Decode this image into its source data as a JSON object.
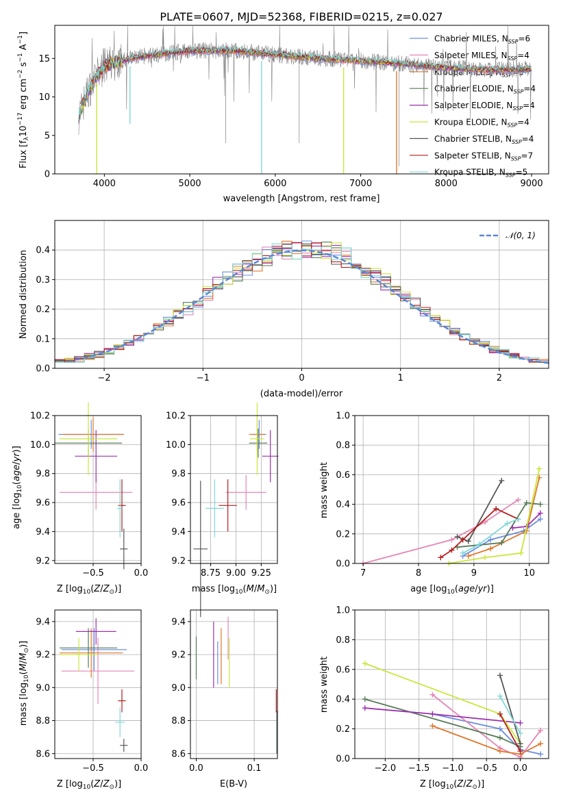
{
  "chart_data": [
    {
      "id": "spectrum",
      "type": "line",
      "title": "PLATE=0607, MJD=52368, FIBERID=0215, z=0.027",
      "xlabel": "wavelength [Angstrom, rest frame]",
      "ylabel": "Flux [f_λ10^-17 erg cm^-2 s^-1 A^-1]",
      "xlim": [
        3420,
        9200
      ],
      "ylim": [
        0,
        19.3
      ],
      "xticks": [
        4000,
        5000,
        6000,
        7000,
        8000,
        9000
      ],
      "yticks": [
        0,
        5,
        10,
        15
      ],
      "grid": false,
      "legend_position": "top-right",
      "shape_anchors": {
        "x": [
          3700,
          3800,
          3900,
          4000,
          4300,
          4600,
          5000,
          5500,
          6000,
          6500,
          7000,
          7500,
          8000,
          8500,
          9000
        ],
        "y": [
          7.5,
          10.5,
          12.5,
          14.0,
          15.0,
          15.5,
          16.0,
          16.0,
          15.5,
          15.0,
          14.7,
          14.3,
          13.8,
          13.5,
          13.6
        ]
      },
      "series": [
        {
          "name": "Chabrier MILES, N_SSP=6",
          "label_main": "Chabrier MILES, N",
          "label_sub": "SSP",
          "label_end": "=6",
          "color": "#6a8ee0"
        },
        {
          "name": "Salpeter MILES, N_SSP=4",
          "label_main": "Salpeter MILES, N",
          "label_sub": "SSP",
          "label_end": "=4",
          "color": "#e585b5"
        },
        {
          "name": "Kroupa MILES, N_SSP=5",
          "label_main": "Kroupa MILES, N",
          "label_sub": "SSP",
          "label_end": "=5",
          "color": "#e0772a"
        },
        {
          "name": "Chabrier ELODIE, N_SSP=4",
          "label_main": "Chabrier ELODIE, N",
          "label_sub": "SSP",
          "label_end": "=4",
          "color": "#557a55"
        },
        {
          "name": "Salpeter ELODIE, N_SSP=4",
          "label_main": "Salpeter ELODIE, N",
          "label_sub": "SSP",
          "label_end": "=4",
          "color": "#9b2fae"
        },
        {
          "name": "Kroupa ELODIE, N_SSP=4",
          "label_main": "Kroupa ELODIE, N",
          "label_sub": "SSP",
          "label_end": "=4",
          "color": "#c9e63a"
        },
        {
          "name": "Chabrier STELIB, N_SSP=4",
          "label_main": "Chabrier STELIB, N",
          "label_sub": "SSP",
          "label_end": "=4",
          "color": "#555555"
        },
        {
          "name": "Salpeter STELIB, N_SSP=7",
          "label_main": "Salpeter STELIB, N",
          "label_sub": "SSP",
          "label_end": "=7",
          "color": "#b51c1c"
        },
        {
          "name": "Kroupa STELIB, N_SSP=5",
          "label_main": "Kroupa STELIB, N",
          "label_sub": "SSP",
          "label_end": "=5",
          "color": "#7fd8d8"
        }
      ],
      "observed_color": "#808080"
    },
    {
      "id": "residuals",
      "type": "histogram",
      "xlabel": "(data-model)/error",
      "ylabel": "Normed distribution",
      "xlim": [
        -2.5,
        2.5
      ],
      "ylim": [
        0,
        0.5
      ],
      "xticks": [
        -2,
        -1,
        0,
        1,
        2
      ],
      "yticks": [
        0.0,
        0.1,
        0.2,
        0.3,
        0.4
      ],
      "grid": true,
      "legend_position": "top-right",
      "gaussian_label": "𝒩(0, 1)",
      "gaussian_color": "#5a86d6",
      "bin_width": 0.1
    },
    {
      "id": "age-vs-Z",
      "type": "errorbar",
      "xlabel": "Z [log10(Z/Z⊙)]",
      "ylabel": "age  [log10(age/yr)]",
      "xlim": [
        -0.9,
        0.0
      ],
      "ylim": [
        9.18,
        10.2
      ],
      "xticks": [
        -0.5,
        0.0
      ],
      "xticklabels": [
        "−0.5",
        "0.0"
      ],
      "yticks": [
        9.2,
        9.4,
        9.6,
        9.8,
        10.0,
        10.2
      ],
      "grid": true,
      "points": [
        {
          "x": -0.52,
          "xerr": 0.34,
          "y": 10.07,
          "yerr": 0.1,
          "color": "#6a8ee0"
        },
        {
          "x": -0.47,
          "xerr": 0.38,
          "y": 9.67,
          "yerr": 0.12,
          "color": "#e585b5"
        },
        {
          "x": -0.5,
          "xerr": 0.32,
          "y": 10.07,
          "yerr": 0.12,
          "color": "#e0772a"
        },
        {
          "x": -0.55,
          "xerr": 0.35,
          "y": 10.01,
          "yerr": 0.1,
          "color": "#557a55"
        },
        {
          "x": -0.47,
          "xerr": 0.22,
          "y": 9.92,
          "yerr": 0.18,
          "color": "#9b2fae"
        },
        {
          "x": -0.55,
          "xerr": 0.3,
          "y": 10.04,
          "yerr": 0.25,
          "color": "#c9e63a"
        },
        {
          "x": -0.18,
          "xerr": 0.04,
          "y": 9.28,
          "yerr": 0.14,
          "color": "#555555"
        },
        {
          "x": -0.2,
          "xerr": 0.04,
          "y": 9.58,
          "yerr": 0.18,
          "color": "#b51c1c"
        },
        {
          "x": -0.22,
          "xerr": 0.03,
          "y": 9.56,
          "yerr": 0.2,
          "color": "#7fd8d8"
        }
      ]
    },
    {
      "id": "age-vs-mass",
      "type": "errorbar",
      "xlabel": "mass [log10(M/M⊙)]",
      "ylabel": "",
      "xlim": [
        8.55,
        9.41
      ],
      "ylim": [
        9.18,
        10.2
      ],
      "xticks": [
        8.75,
        9.0,
        9.25
      ],
      "yticks": [
        9.2,
        9.4,
        9.6,
        9.8,
        10.0,
        10.2
      ],
      "grid": true,
      "points": [
        {
          "x": 9.23,
          "xerr": 0.07,
          "y": 10.07,
          "yerr": 0.1,
          "color": "#6a8ee0"
        },
        {
          "x": 9.1,
          "xerr": 0.2,
          "y": 9.67,
          "yerr": 0.12,
          "color": "#e585b5"
        },
        {
          "x": 9.21,
          "xerr": 0.08,
          "y": 10.07,
          "yerr": 0.12,
          "color": "#e0772a"
        },
        {
          "x": 9.22,
          "xerr": 0.09,
          "y": 10.01,
          "yerr": 0.1,
          "color": "#557a55"
        },
        {
          "x": 9.34,
          "xerr": 0.08,
          "y": 9.92,
          "yerr": 0.18,
          "color": "#9b2fae"
        },
        {
          "x": 9.21,
          "xerr": 0.07,
          "y": 10.04,
          "yerr": 0.25,
          "color": "#c9e63a"
        },
        {
          "x": 8.65,
          "xerr": 0.07,
          "y": 9.28,
          "yerr": 0.47,
          "color": "#555555"
        },
        {
          "x": 8.92,
          "xerr": 0.09,
          "y": 9.58,
          "yerr": 0.18,
          "color": "#b51c1c"
        },
        {
          "x": 8.79,
          "xerr": 0.09,
          "y": 9.56,
          "yerr": 0.2,
          "color": "#7fd8d8"
        }
      ]
    },
    {
      "id": "weight-vs-age",
      "type": "line",
      "xlabel": "age  [log10(age/yr)]",
      "ylabel": "mass weight",
      "xlim": [
        6.85,
        10.35
      ],
      "ylim": [
        0,
        1.0
      ],
      "xticks": [
        7,
        8,
        9,
        10
      ],
      "yticks": [
        0.0,
        0.2,
        0.4,
        0.6,
        0.8,
        1.0
      ],
      "grid": true,
      "series": [
        {
          "color": "#6a8ee0",
          "x": [
            8.8,
            9.3,
            9.9,
            10.2
          ],
          "y": [
            0.05,
            0.16,
            0.22,
            0.3
          ]
        },
        {
          "color": "#e585b5",
          "x": [
            7.0,
            8.6,
            9.2,
            9.8
          ],
          "y": [
            0.0,
            0.16,
            0.28,
            0.43
          ]
        },
        {
          "color": "#e0772a",
          "x": [
            8.9,
            9.3,
            9.95,
            10.18
          ],
          "y": [
            0.05,
            0.1,
            0.22,
            0.58
          ]
        },
        {
          "color": "#557a55",
          "x": [
            8.7,
            9.5,
            9.95,
            10.2
          ],
          "y": [
            0.11,
            0.14,
            0.41,
            0.4
          ]
        },
        {
          "color": "#9b2fae",
          "x": [
            9.7,
            9.95,
            10.2
          ],
          "y": [
            0.24,
            0.25,
            0.34
          ]
        },
        {
          "color": "#c9e63a",
          "x": [
            8.55,
            9.2,
            9.85,
            10.18
          ],
          "y": [
            0.0,
            0.04,
            0.07,
            0.64
          ]
        },
        {
          "color": "#555555",
          "x": [
            8.7,
            8.9,
            9.5
          ],
          "y": [
            0.18,
            0.15,
            0.56
          ]
        },
        {
          "color": "#b51c1c",
          "x": [
            8.4,
            8.6,
            8.8,
            9.4,
            9.8
          ],
          "y": [
            0.04,
            0.09,
            0.16,
            0.37,
            0.3
          ]
        },
        {
          "color": "#7fd8d8",
          "x": [
            8.8,
            9.1,
            9.6,
            9.8
          ],
          "y": [
            0.07,
            0.13,
            0.27,
            0.3
          ]
        }
      ]
    },
    {
      "id": "mass-vs-Z",
      "type": "errorbar",
      "xlabel": "Z [log10(Z/Z⊙)]",
      "ylabel": "mass [log10(M/M⊙)]",
      "xlim": [
        -0.9,
        0.0
      ],
      "ylim": [
        8.57,
        9.47
      ],
      "xticks": [
        -0.5,
        0.0
      ],
      "xticklabels": [
        "−0.5",
        "0.0"
      ],
      "yticks": [
        8.6,
        8.8,
        9.0,
        9.2,
        9.4
      ],
      "grid": true,
      "points": [
        {
          "x": -0.49,
          "xerr": 0.34,
          "y": 9.23,
          "yerr": 0.13,
          "color": "#6a8ee0"
        },
        {
          "x": -0.45,
          "xerr": 0.38,
          "y": 9.1,
          "yerr": 0.2,
          "color": "#e585b5"
        },
        {
          "x": -0.52,
          "xerr": 0.33,
          "y": 9.21,
          "yerr": 0.15,
          "color": "#e0772a"
        },
        {
          "x": -0.55,
          "xerr": 0.3,
          "y": 9.24,
          "yerr": 0.12,
          "color": "#557a55"
        },
        {
          "x": -0.47,
          "xerr": 0.21,
          "y": 9.34,
          "yerr": 0.08,
          "color": "#9b2fae"
        },
        {
          "x": -0.65,
          "xerr": 0.2,
          "y": 9.2,
          "yerr": 0.1,
          "color": "#c9e63a"
        },
        {
          "x": -0.18,
          "xerr": 0.04,
          "y": 8.65,
          "yerr": 0.04,
          "color": "#555555"
        },
        {
          "x": -0.2,
          "xerr": 0.04,
          "y": 8.92,
          "yerr": 0.07,
          "color": "#b51c1c"
        },
        {
          "x": -0.22,
          "xerr": 0.05,
          "y": 8.79,
          "yerr": 0.09,
          "color": "#7fd8d8"
        }
      ]
    },
    {
      "id": "mass-vs-ebv",
      "type": "errorbar",
      "xlabel": "E(B-V)",
      "ylabel": "",
      "xlim": [
        -0.01,
        0.14
      ],
      "ylim": [
        8.57,
        9.47
      ],
      "xticks": [
        0.0,
        0.1
      ],
      "yticks": [
        8.6,
        8.8,
        9.0,
        9.2,
        9.4
      ],
      "grid": true,
      "points": [
        {
          "x": 0.0,
          "xerr": 0,
          "y": 9.18,
          "yerr": 0.13,
          "color": "#557a55"
        },
        {
          "x": 0.03,
          "xerr": 0,
          "y": 9.2,
          "yerr": 0.2,
          "color": "#9b2fae"
        },
        {
          "x": 0.037,
          "xerr": 0,
          "y": 9.15,
          "yerr": 0.13,
          "color": "#6a8ee0"
        },
        {
          "x": 0.043,
          "xerr": 0,
          "y": 9.19,
          "yerr": 0.17,
          "color": "#e0772a"
        },
        {
          "x": 0.055,
          "xerr": 0,
          "y": 9.3,
          "yerr": 0.13,
          "color": "#e585b5"
        },
        {
          "x": 0.057,
          "xerr": 0,
          "y": 9.15,
          "yerr": 0.15,
          "color": "#c9e63a"
        },
        {
          "x": 0.138,
          "xerr": 0,
          "y": 8.92,
          "yerr": 0.07,
          "color": "#b51c1c"
        },
        {
          "x": 0.139,
          "xerr": 0,
          "y": 8.73,
          "yerr": 0.13,
          "color": "#555555"
        },
        {
          "x": 0.14,
          "xerr": 0,
          "y": 8.73,
          "yerr": 0.13,
          "color": "#7fd8d8"
        }
      ]
    },
    {
      "id": "weight-vs-Z",
      "type": "line",
      "xlabel": "Z [log10(Z/Z⊙)]",
      "ylabel": "mass weight",
      "xlim": [
        -2.45,
        0.42
      ],
      "ylim": [
        0,
        1.0
      ],
      "xticks": [
        -2.0,
        -1.5,
        -1.0,
        -0.5,
        0.0
      ],
      "xticklabels": [
        "−2.0",
        "−1.5",
        "−1.0",
        "−0.5",
        "0.0"
      ],
      "yticks": [
        0.0,
        0.2,
        0.4,
        0.6,
        0.8,
        1.0
      ],
      "grid": true,
      "series": [
        {
          "color": "#6a8ee0",
          "x": [
            -1.3,
            -0.3,
            0.0,
            0.3
          ],
          "y": [
            0.3,
            0.2,
            0.06,
            0.03
          ]
        },
        {
          "color": "#e585b5",
          "x": [
            -1.3,
            -0.3,
            0.0,
            0.3
          ],
          "y": [
            0.43,
            0.07,
            0.01,
            0.19
          ]
        },
        {
          "color": "#e0772a",
          "x": [
            -1.3,
            -0.3,
            0.0,
            0.3
          ],
          "y": [
            0.22,
            0.05,
            0.03,
            0.1
          ]
        },
        {
          "color": "#557a55",
          "x": [
            -2.3,
            -0.3,
            0.0
          ],
          "y": [
            0.4,
            0.14,
            0.08
          ]
        },
        {
          "color": "#9b2fae",
          "x": [
            -2.3,
            -1.3,
            0.0
          ],
          "y": [
            0.34,
            0.3,
            0.24
          ]
        },
        {
          "color": "#c9e63a",
          "x": [
            -2.3,
            -0.3,
            0.0
          ],
          "y": [
            0.64,
            0.3,
            0.1
          ]
        },
        {
          "color": "#555555",
          "x": [
            -0.3,
            0.0
          ],
          "y": [
            0.56,
            0.1
          ]
        },
        {
          "color": "#b51c1c",
          "x": [
            -0.3,
            0.0
          ],
          "y": [
            0.3,
            0.05
          ]
        },
        {
          "color": "#7fd8d8",
          "x": [
            -0.3,
            0.0
          ],
          "y": [
            0.42,
            0.17
          ]
        }
      ]
    }
  ]
}
